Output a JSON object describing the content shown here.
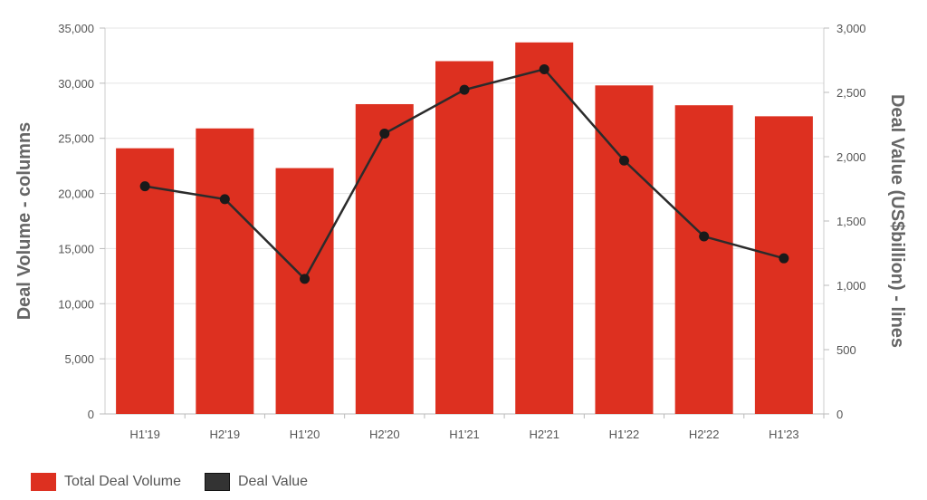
{
  "chart_data": {
    "type": "bar",
    "categories": [
      "H1'19",
      "H2'19",
      "H1'20",
      "H2'20",
      "H1'21",
      "H2'21",
      "H1'22",
      "H2'22",
      "H1'23"
    ],
    "series": [
      {
        "name": "Total Deal Volume",
        "type": "bar",
        "axis": "left",
        "color": "#dd3020",
        "values": [
          24100,
          25900,
          22300,
          28100,
          32000,
          33700,
          29800,
          28000,
          27000
        ]
      },
      {
        "name": "Deal Value",
        "type": "line",
        "axis": "right",
        "color": "#2b2b2b",
        "values": [
          1770,
          1670,
          1050,
          2180,
          2520,
          2680,
          1970,
          1380,
          1210
        ]
      }
    ],
    "ylabel": "Deal Volume - columns",
    "y2label": "Deal Value (US$billion) - lines",
    "ylim": [
      0,
      35000
    ],
    "y2lim": [
      0,
      3000
    ],
    "yticks": [
      "0",
      "5,000",
      "10,000",
      "15,000",
      "20,000",
      "25,000",
      "30,000",
      "35,000"
    ],
    "y2ticks": [
      "0",
      "500",
      "1,000",
      "1,500",
      "2,000",
      "2,500",
      "3,000"
    ],
    "grid": true,
    "legend_position": "bottom-left"
  },
  "legend": {
    "bar_label": "Total Deal Volume",
    "line_label": "Deal Value",
    "bar_color": "#dd3020",
    "line_color": "#333333"
  }
}
